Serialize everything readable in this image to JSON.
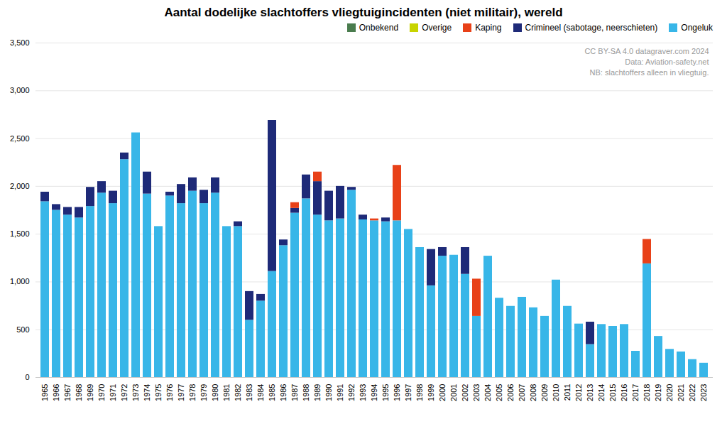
{
  "chart_data": {
    "type": "bar",
    "title": "Aantal dodelijke slachtoffers vliegtuigincidenten (niet militair), wereld",
    "categories": [
      "1965",
      "1966",
      "1967",
      "1968",
      "1969",
      "1970",
      "1971",
      "1972",
      "1973",
      "1974",
      "1975",
      "1976",
      "1977",
      "1978",
      "1979",
      "1980",
      "1981",
      "1982",
      "1983",
      "1984",
      "1985",
      "1986",
      "1987",
      "1988",
      "1989",
      "1990",
      "1991",
      "1992",
      "1993",
      "1994",
      "1995",
      "1996",
      "1997",
      "1998",
      "1999",
      "2000",
      "2001",
      "2002",
      "2003",
      "2004",
      "2005",
      "2006",
      "2007",
      "2008",
      "2009",
      "2010",
      "2011",
      "2012",
      "2013",
      "2014",
      "2015",
      "2016",
      "2017",
      "2018",
      "2019",
      "2020",
      "2021",
      "2022",
      "2023"
    ],
    "series": [
      {
        "name": "Ongeluk",
        "color": "#38b6e8",
        "values": [
          1840,
          1750,
          1700,
          1670,
          1790,
          1930,
          1820,
          2280,
          2560,
          1920,
          1580,
          1900,
          1820,
          1950,
          1820,
          1930,
          1580,
          1580,
          600,
          800,
          1110,
          1380,
          1720,
          1870,
          1700,
          1640,
          1660,
          1960,
          1650,
          1640,
          1630,
          1640,
          1550,
          1360,
          960,
          1270,
          1280,
          1080,
          640,
          1270,
          830,
          745,
          840,
          730,
          640,
          1020,
          745,
          560,
          345,
          555,
          535,
          555,
          275,
          1190,
          430,
          295,
          268,
          188,
          150
        ]
      },
      {
        "name": "Crimineel (sabotage, neerschieten)",
        "color": "#1e2a78",
        "values": [
          100,
          60,
          80,
          110,
          200,
          120,
          130,
          70,
          0,
          230,
          0,
          40,
          200,
          140,
          140,
          160,
          0,
          50,
          300,
          70,
          1580,
          60,
          50,
          250,
          350,
          310,
          340,
          30,
          50,
          0,
          40,
          0,
          0,
          0,
          380,
          90,
          0,
          280,
          0,
          0,
          0,
          0,
          0,
          0,
          0,
          0,
          0,
          0,
          235,
          0,
          0,
          0,
          0,
          0,
          0,
          0,
          0,
          0,
          0
        ]
      },
      {
        "name": "Kaping",
        "color": "#e84118",
        "values": [
          0,
          0,
          0,
          0,
          0,
          0,
          0,
          0,
          0,
          0,
          0,
          0,
          0,
          0,
          0,
          0,
          0,
          0,
          0,
          0,
          0,
          0,
          60,
          0,
          100,
          0,
          0,
          0,
          0,
          20,
          0,
          580,
          0,
          0,
          0,
          0,
          0,
          0,
          390,
          0,
          0,
          0,
          0,
          0,
          0,
          0,
          0,
          0,
          0,
          0,
          0,
          0,
          0,
          255,
          0,
          0,
          0,
          0,
          0
        ]
      },
      {
        "name": "Overige",
        "color": "#c8d400",
        "values": [
          0,
          0,
          0,
          0,
          0,
          0,
          0,
          0,
          0,
          0,
          0,
          0,
          0,
          0,
          0,
          0,
          0,
          0,
          0,
          0,
          0,
          0,
          0,
          0,
          0,
          0,
          0,
          0,
          0,
          0,
          0,
          0,
          0,
          0,
          0,
          0,
          0,
          0,
          0,
          0,
          0,
          0,
          0,
          0,
          0,
          0,
          0,
          0,
          0,
          0,
          0,
          0,
          0,
          0,
          0,
          0,
          0,
          0,
          0
        ]
      },
      {
        "name": "Onbekend",
        "color": "#4a7c4e",
        "values": [
          0,
          0,
          0,
          0,
          0,
          0,
          0,
          0,
          0,
          0,
          0,
          0,
          0,
          0,
          0,
          0,
          0,
          0,
          0,
          0,
          0,
          0,
          0,
          0,
          0,
          0,
          0,
          0,
          0,
          0,
          0,
          0,
          0,
          0,
          0,
          0,
          0,
          0,
          0,
          0,
          0,
          0,
          0,
          0,
          0,
          0,
          0,
          0,
          0,
          0,
          0,
          0,
          0,
          0,
          0,
          0,
          0,
          0,
          0
        ]
      }
    ],
    "stacked": true,
    "ylim": [
      0,
      3500
    ],
    "yticks": [
      0,
      500,
      1000,
      1500,
      2000,
      2500,
      3000,
      3500
    ],
    "grid": true,
    "legend": "upper right",
    "annotations": [
      "CC BY-SA 4.0 datagraver.com 2024",
      "Data: Aviation-safety.net",
      "NB: slachtoffers alleen in vliegtuig."
    ]
  }
}
